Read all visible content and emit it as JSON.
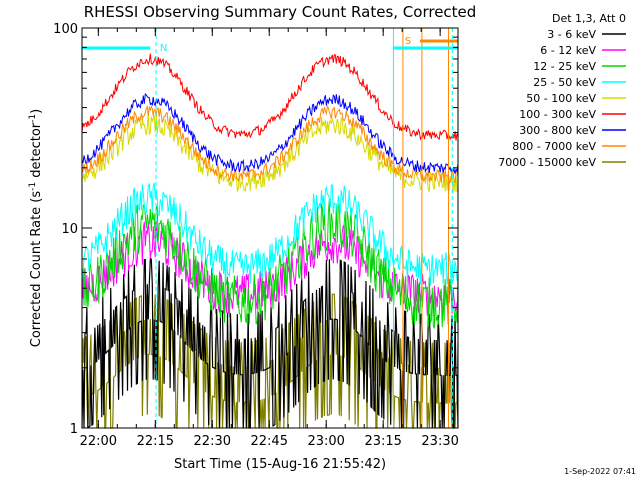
{
  "chart_data": {
    "type": "line",
    "title": "RHESSI Observing Summary Count Rates, Corrected",
    "xlabel": "Start Time (15-Aug-16 21:55:42)",
    "ylabel_main": "Corrected Count Rate (s",
    "ylabel_sup1": "-1",
    "ylabel_mid": " detector",
    "ylabel_sup2": "-1",
    "ylabel_end": ")",
    "y_scale": "log",
    "ylim": [
      1,
      100
    ],
    "y_ticks": [
      {
        "value": 1,
        "label": "1"
      },
      {
        "value": 10,
        "label": "10"
      },
      {
        "value": 100,
        "label": "100"
      }
    ],
    "x_range_minutes": [
      0,
      40
    ],
    "x_ticks": [
      {
        "minute": 4.3,
        "label": "22:00"
      },
      {
        "minute": 19.3,
        "label": "22:15"
      },
      {
        "minute": 34.3,
        "label": "22:30"
      },
      {
        "minute": 49.3,
        "label": "22:45"
      },
      {
        "minute": 64.3,
        "label": "23:00"
      },
      {
        "minute": 79.3,
        "label": "23:15"
      },
      {
        "minute": 94.3,
        "label": "23:30"
      }
    ],
    "x_total_minutes": 99,
    "legend_header": "Det 1,3, Att 0",
    "legend_position": "right",
    "series": [
      {
        "name": "3 - 6 keV",
        "color": "#000000",
        "base": 2.2,
        "peak": 4.2,
        "noise": 0.9
      },
      {
        "name": "6 - 12 keV",
        "color": "#ff00ff",
        "base": 4.6,
        "peak": 8.5,
        "noise": 0.25
      },
      {
        "name": "12 - 25 keV",
        "color": "#00d800",
        "base": 4.2,
        "peak": 10.5,
        "noise": 0.3
      },
      {
        "name": "25 - 50 keV",
        "color": "#00ffff",
        "base": 6.2,
        "peak": 14.0,
        "noise": 0.2
      },
      {
        "name": "50 - 100 keV",
        "color": "#d8d800",
        "base": 17.0,
        "peak": 33.0,
        "noise": 0.12
      },
      {
        "name": "100 - 300 keV",
        "color": "#ff0000",
        "base": 29.0,
        "peak": 70.0,
        "noise": 0.06
      },
      {
        "name": "300 - 800 keV",
        "color": "#0000ff",
        "base": 20.0,
        "peak": 44.0,
        "noise": 0.07
      },
      {
        "name": "800 - 7000 keV",
        "color": "#ff8800",
        "base": 18.0,
        "peak": 38.0,
        "noise": 0.08
      },
      {
        "name": "7000 - 15000 keV",
        "color": "#808000",
        "base": 1.6,
        "peak": 2.8,
        "noise": 0.9
      }
    ],
    "peaks_minutes": [
      18,
      66
    ],
    "peak_width_minutes": 11,
    "annotations": [
      {
        "text": "N",
        "color": "#00ffff"
      },
      {
        "text": "S",
        "color": "#ff8800"
      }
    ],
    "saa_lines_minutes": [
      19.5,
      97.5
    ],
    "orange_lines_minutes": [
      84.5,
      89.5,
      96.5
    ],
    "footer_date": "1-Sep-2022 07:41"
  }
}
